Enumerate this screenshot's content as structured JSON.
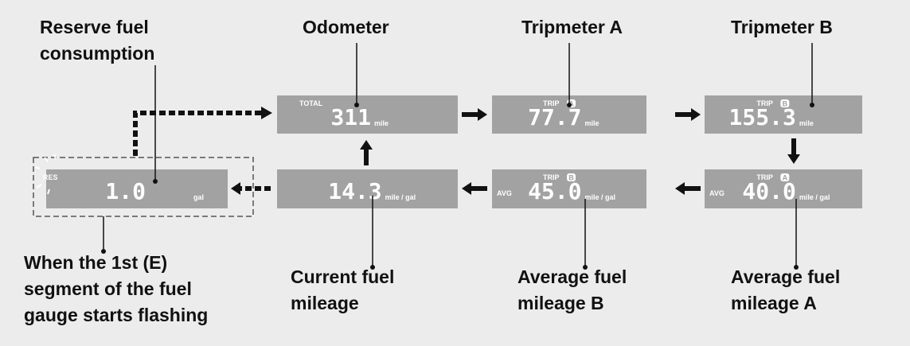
{
  "callouts": [
    {
      "lines": [
        "Reserve fuel",
        "consumption"
      ]
    },
    {
      "lines": [
        "Odometer"
      ]
    },
    {
      "lines": [
        "Tripmeter A"
      ]
    },
    {
      "lines": [
        "Tripmeter B"
      ]
    },
    {
      "lines": [
        "When the 1st (E)",
        "segment of the fuel",
        "gauge starts flashing"
      ]
    },
    {
      "lines": [
        "Current fuel",
        "mileage"
      ]
    },
    {
      "lines": [
        "Average fuel",
        "mileage B"
      ]
    },
    {
      "lines": [
        "Average fuel",
        "mileage A"
      ]
    }
  ],
  "displays": [
    {
      "mode": "TOTAL",
      "value": "311",
      "unit": "mile"
    },
    {
      "mode": "TRIP",
      "badge": "A",
      "value": "77.7",
      "unit": "mile"
    },
    {
      "mode": "TRIP",
      "badge": "B",
      "value": "155.3",
      "unit": "mile"
    },
    {
      "mode": "TRIP",
      "badge": "A",
      "avg": "AVG",
      "value": "40.0",
      "unit": "mile / gal"
    },
    {
      "mode": "TRIP",
      "badge": "B",
      "avg": "AVG",
      "value": "45.0",
      "unit": "mile / gal"
    },
    {
      "value": "14.3",
      "unit": "mile / gal"
    },
    {
      "mode": "RES",
      "value": "1.0",
      "unit": "gal"
    }
  ]
}
